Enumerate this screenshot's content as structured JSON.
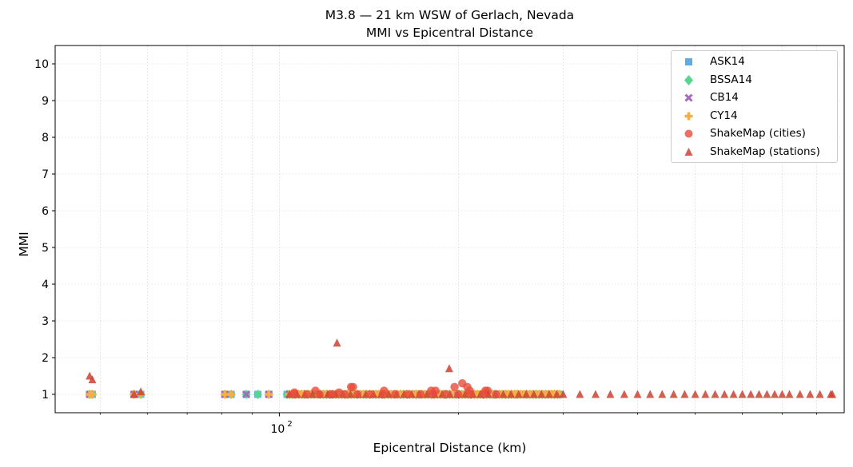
{
  "chart_data": {
    "type": "scatter",
    "title": "M3.8 — 21 km WSW of Gerlach, Nevada",
    "subtitle": "MMI vs Epicentral Distance",
    "xlabel": "Epicentral Distance (km)",
    "ylabel": "MMI",
    "xscale": "log",
    "xlim": [
      42,
      890
    ],
    "ylim": [
      0.5,
      10.5
    ],
    "x_major_ticks": [
      {
        "value": 100,
        "label": "10^2"
      }
    ],
    "x_minor_ticks": [
      50,
      60,
      70,
      80,
      90,
      200,
      300,
      400,
      500,
      600,
      700,
      800
    ],
    "y_ticks": [
      1,
      2,
      3,
      4,
      5,
      6,
      7,
      8,
      9,
      10
    ],
    "grid": true,
    "legend_position": "upper right",
    "legend": [
      "ASK14",
      "BSSA14",
      "CB14",
      "CY14",
      "ShakeMap (cities)",
      "ShakeMap (stations)"
    ],
    "series": [
      {
        "name": "ASK14",
        "marker": "square",
        "color": "#5DADE2",
        "x": [
          48,
          48.5,
          57,
          58.5,
          81,
          83,
          88,
          92,
          96,
          103,
          110,
          120,
          130,
          140,
          150,
          160,
          170,
          180,
          190,
          200,
          210,
          220,
          230,
          240,
          250,
          260,
          270,
          280,
          290,
          296
        ],
        "y": [
          1,
          1,
          1,
          1,
          1,
          1,
          1,
          1,
          1,
          1,
          1,
          1,
          1,
          1,
          1,
          1,
          1,
          1,
          1,
          1,
          1,
          1,
          1,
          1,
          1,
          1,
          1,
          1,
          1,
          1
        ]
      },
      {
        "name": "BSSA14",
        "marker": "diamond",
        "color": "#58D68D",
        "x": [
          48,
          48.5,
          57,
          58.5,
          81,
          83,
          88,
          92,
          96,
          103,
          110,
          120,
          130,
          140,
          150,
          160,
          170,
          180,
          190,
          200,
          210,
          220,
          230,
          240,
          250,
          260,
          270,
          280,
          290,
          296
        ],
        "y": [
          1,
          1,
          1,
          1,
          1,
          1,
          1,
          1,
          1,
          1,
          1,
          1,
          1,
          1,
          1,
          1,
          1,
          1,
          1,
          1,
          1,
          1,
          1,
          1,
          1,
          1,
          1,
          1,
          1,
          1
        ]
      },
      {
        "name": "CB14",
        "marker": "x",
        "color": "#A569BD",
        "x": [
          48,
          57,
          81,
          88,
          96,
          110,
          130,
          150,
          170,
          190,
          210,
          230,
          250,
          270,
          290
        ],
        "y": [
          1,
          1,
          1,
          1,
          1,
          1,
          1,
          1,
          1,
          1,
          1,
          1,
          1,
          1,
          1
        ]
      },
      {
        "name": "CY14",
        "marker": "plus",
        "color": "#F5B041",
        "x": [
          48,
          48.5,
          57,
          58.5,
          81,
          83,
          96,
          110,
          130,
          150,
          170,
          190,
          210,
          230,
          250,
          270,
          290,
          296
        ],
        "y": [
          1,
          1,
          1,
          1,
          1,
          1,
          1,
          1,
          1,
          1,
          1,
          1,
          1,
          1,
          1,
          1,
          1,
          1
        ]
      },
      {
        "name": "ShakeMap (cities)",
        "marker": "circle",
        "color": "#E74C3C",
        "x": [
          106,
          115,
          122,
          126,
          132,
          133,
          150,
          180,
          183,
          197,
          203,
          207,
          209,
          222,
          224
        ],
        "y": [
          1.05,
          1.1,
          1.0,
          1.05,
          1.2,
          1.2,
          1.1,
          1.1,
          1.1,
          1.2,
          1.3,
          1.2,
          1.1,
          1.1,
          1.1
        ]
      },
      {
        "name": "ShakeMap (stations)",
        "marker": "triangle",
        "color": "#CB4335",
        "x": [
          48,
          48.5,
          57,
          58.5,
          125,
          193,
          300,
          320,
          340,
          360,
          380,
          400,
          420,
          440,
          460,
          480,
          500,
          520,
          540,
          560,
          580,
          600,
          620,
          640,
          660,
          680,
          700,
          720,
          750,
          780,
          810,
          845,
          850
        ],
        "y": [
          1.5,
          1.4,
          1.0,
          1.07,
          2.4,
          1.7,
          1.0,
          1.0,
          1.0,
          1.0,
          1.0,
          1.0,
          1.0,
          1.0,
          1.0,
          1.0,
          1.0,
          1.0,
          1.0,
          1.0,
          1.0,
          1.0,
          1.0,
          1.0,
          1.0,
          1.0,
          1.0,
          1.0,
          1.0,
          1.0,
          1.0,
          1.0,
          1.0
        ]
      }
    ]
  },
  "ui": {
    "title": "M3.8 — 21 km WSW of Gerlach, Nevada",
    "subtitle": "MMI vs Epicentral Distance",
    "xlabel": "Epicentral Distance (km)",
    "ylabel": "MMI",
    "x_tick_label_base": "10",
    "x_tick_label_exp": "2",
    "legend": [
      {
        "label": "ASK14",
        "marker": "square",
        "color": "#5DADE2"
      },
      {
        "label": "BSSA14",
        "marker": "diamond",
        "color": "#58D68D"
      },
      {
        "label": "CB14",
        "marker": "x",
        "color": "#A569BD"
      },
      {
        "label": "CY14",
        "marker": "plus",
        "color": "#F5B041"
      },
      {
        "label": "ShakeMap (cities)",
        "marker": "circle",
        "color": "#E74C3C"
      },
      {
        "label": "ShakeMap (stations)",
        "marker": "triangle",
        "color": "#CB4335"
      }
    ]
  }
}
